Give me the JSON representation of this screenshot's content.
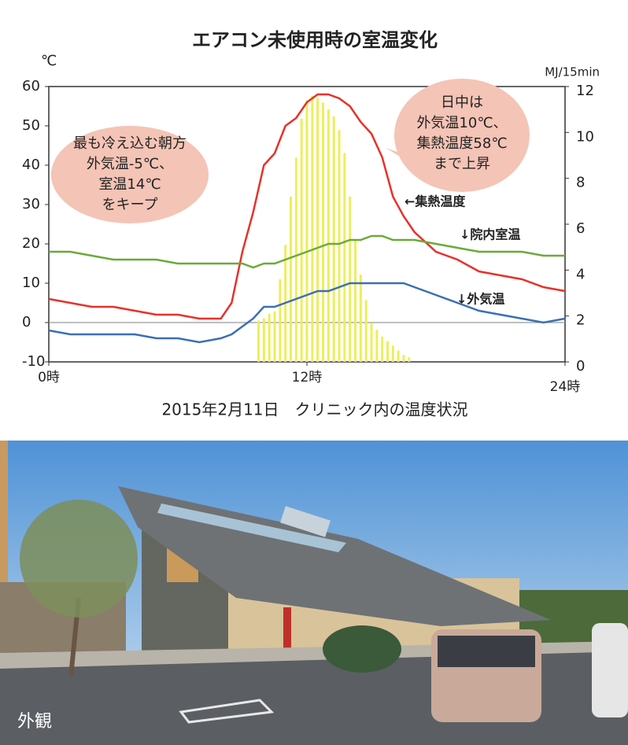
{
  "chart_data": {
    "type": "line",
    "title": "エアコン未使用時の室温変化",
    "caption": "2015年2月11日　クリニック内の温度状況",
    "y_label": "℃",
    "y2_label": "MJ/15min",
    "x": [
      0,
      1,
      2,
      3,
      4,
      5,
      6,
      7,
      8,
      8.5,
      9,
      9.5,
      10,
      10.5,
      11,
      11.5,
      12,
      12.5,
      13,
      13.5,
      14,
      14.5,
      15,
      15.5,
      16,
      16.5,
      17,
      18,
      19,
      20,
      21,
      22,
      23,
      24
    ],
    "xlim": [
      0,
      24
    ],
    "xticks": [
      {
        "value": 0,
        "label": "0時"
      },
      {
        "value": 12,
        "label": "12時"
      },
      {
        "value": 24,
        "label": "24時"
      }
    ],
    "ylim": [
      -10,
      60
    ],
    "yticks": [
      -10,
      0,
      10,
      20,
      30,
      40,
      50,
      60
    ],
    "y2lim": [
      0,
      12
    ],
    "y2ticks": [
      0,
      2,
      4,
      6,
      8,
      10,
      12
    ],
    "series": [
      {
        "name": "←集熱温度",
        "color": "#e8312a",
        "values": [
          6,
          5,
          4,
          4,
          3,
          2,
          2,
          1,
          1,
          5,
          18,
          28,
          40,
          43,
          50,
          52,
          56,
          58,
          58,
          57,
          55,
          51,
          48,
          42,
          32,
          27,
          23,
          18,
          16,
          13,
          12,
          11,
          9,
          8
        ]
      },
      {
        "name": "↓院内室温",
        "color": "#6aaa3a",
        "values": [
          18,
          18,
          17,
          16,
          16,
          16,
          15,
          15,
          15,
          15,
          15,
          14,
          15,
          15,
          16,
          17,
          18,
          19,
          20,
          20,
          21,
          21,
          22,
          22,
          21,
          21,
          21,
          20,
          19,
          18,
          18,
          18,
          17,
          17
        ]
      },
      {
        "name": "↓外気温",
        "color": "#3a6fb5",
        "values": [
          -2,
          -3,
          -3,
          -3,
          -3,
          -4,
          -4,
          -5,
          -4,
          -3,
          -1,
          1,
          4,
          4,
          5,
          6,
          7,
          8,
          8,
          9,
          10,
          10,
          10,
          10,
          10,
          10,
          9,
          7,
          5,
          3,
          2,
          1,
          0,
          1
        ]
      },
      {
        "type": "bar",
        "axis": "y2",
        "color": "#eeee5a",
        "x": [
          9.75,
          10,
          10.25,
          10.5,
          10.75,
          11,
          11.25,
          11.5,
          11.75,
          12,
          12.25,
          12.5,
          12.75,
          13,
          13.25,
          13.5,
          13.75,
          14,
          14.25,
          14.5,
          14.75,
          15,
          15.25,
          15.5,
          15.75,
          16,
          16.25,
          16.5,
          16.75
        ],
        "values": [
          1.8,
          1.9,
          2.1,
          2.2,
          3.6,
          5.1,
          7.2,
          8.9,
          10.6,
          11.4,
          11.6,
          11.5,
          11.3,
          11.0,
          10.7,
          10.1,
          9.1,
          7.2,
          5.3,
          3.8,
          2.7,
          1.7,
          1.4,
          1.1,
          0.9,
          0.7,
          0.5,
          0.3,
          0.2
        ]
      }
    ],
    "annotations": [
      {
        "lines": [
          "最も冷え込む朝方",
          "外気温-5℃、",
          "室温14℃",
          "をキープ"
        ]
      },
      {
        "lines": [
          "日中は",
          "外気温10℃、",
          "集熱温度58℃",
          "まで上昇"
        ]
      }
    ],
    "photo_label": "外観"
  }
}
